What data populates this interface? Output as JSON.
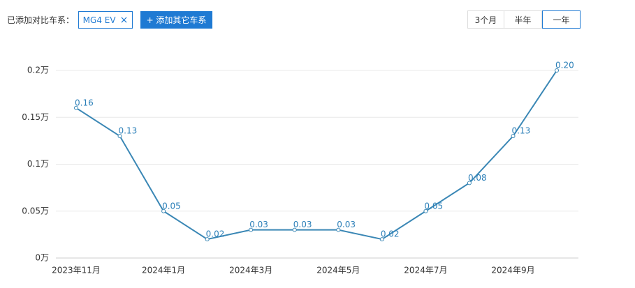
{
  "ui": {
    "compare_label": "已添加对比车系：",
    "chip": "MG4 EV",
    "chip_close": "×",
    "add_button": "+ 添加其它车系",
    "tabs": [
      "3个月",
      "半年",
      "一年"
    ],
    "active_tab": 2
  },
  "chart_data": {
    "type": "line",
    "categories": [
      "2023年11月",
      null,
      "2024年1月",
      null,
      "2024年3月",
      null,
      "2024年5月",
      null,
      "2024年7月",
      null,
      "2024年9月",
      null
    ],
    "series": [
      {
        "name": "MG4 EV",
        "color": "#3a87b5",
        "values": [
          0.16,
          0.13,
          0.05,
          0.02,
          0.03,
          0.03,
          0.03,
          0.02,
          0.05,
          0.08,
          0.13,
          0.2
        ],
        "value_labels": [
          "0.16",
          "0.13",
          "0.05",
          "0.02",
          "0.03",
          "0.03",
          "0.03",
          "0.02",
          "0.05",
          "0.08",
          "0.13",
          "0.20"
        ]
      }
    ],
    "ylim": [
      0,
      0.2
    ],
    "yticks": [
      {
        "value": 0,
        "label": "0万"
      },
      {
        "value": 0.05,
        "label": "0.05万"
      },
      {
        "value": 0.1,
        "label": "0.1万"
      },
      {
        "value": 0.15,
        "label": "0.15万"
      },
      {
        "value": 0.2,
        "label": "0.2万"
      }
    ],
    "grid": true
  }
}
